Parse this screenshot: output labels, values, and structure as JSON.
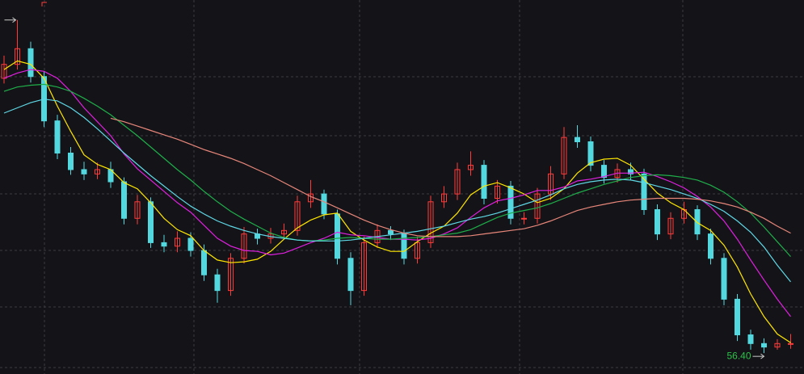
{
  "chart_data": {
    "type": "candlestick",
    "ylim": [
      54,
      97
    ],
    "up_color": "#ff3b3b",
    "down_color": "#54d8e0",
    "open": [
      88.0,
      89.6,
      91.4,
      88.2,
      83.1,
      79.4,
      77.5,
      77.0,
      77.5,
      76.1,
      71.9,
      73.8,
      69.1,
      68.7,
      69.6,
      68.2,
      65.4,
      63.6,
      67.3,
      70.1,
      69.6,
      70.1,
      70.5,
      73.8,
      74.7,
      72.4,
      67.3,
      63.6,
      69.1,
      70.5,
      70.1,
      67.3,
      69.1,
      73.8,
      74.7,
      77.5,
      78.0,
      74.2,
      75.6,
      71.9,
      71.9,
      74.7,
      77.0,
      81.2,
      80.7,
      78.0,
      76.6,
      77.5,
      77.0,
      72.9,
      70.1,
      71.9,
      72.9,
      70.1,
      67.3,
      62.6,
      58.5,
      57.5,
      57.1,
      57.5
    ],
    "high": [
      90.6,
      94.7,
      92.2,
      88.8,
      83.8,
      80.1,
      78.4,
      78.3,
      78.4,
      76.6,
      74.6,
      74.3,
      70.0,
      70.4,
      70.3,
      68.9,
      66.1,
      67.9,
      70.9,
      70.7,
      70.8,
      71.3,
      74.5,
      76.3,
      75.2,
      72.9,
      68.0,
      69.8,
      71.2,
      71.0,
      70.6,
      69.8,
      74.5,
      75.6,
      78.3,
      79.6,
      78.6,
      76.3,
      76.2,
      72.6,
      75.4,
      77.9,
      82.4,
      82.6,
      81.3,
      78.6,
      78.2,
      78.3,
      77.6,
      73.5,
      72.6,
      73.8,
      73.4,
      70.7,
      67.9,
      63.2,
      59.1,
      58.1,
      58.0,
      58.6
    ],
    "low": [
      87.4,
      89.0,
      87.5,
      82.4,
      78.7,
      76.9,
      76.3,
      76.4,
      75.4,
      71.2,
      71.2,
      68.5,
      68.0,
      68.0,
      67.5,
      64.7,
      62.2,
      63.0,
      66.7,
      68.9,
      69.0,
      69.5,
      69.9,
      73.1,
      71.8,
      66.6,
      61.9,
      63.0,
      68.5,
      69.4,
      66.6,
      66.7,
      68.5,
      73.1,
      74.0,
      76.8,
      73.5,
      73.6,
      71.2,
      71.2,
      71.3,
      74.0,
      76.4,
      80.0,
      77.3,
      75.9,
      76.0,
      76.3,
      72.3,
      69.4,
      69.5,
      71.3,
      69.4,
      66.6,
      61.9,
      57.8,
      56.8,
      56.4,
      56.8,
      56.9
    ],
    "close": [
      89.6,
      91.4,
      88.2,
      83.1,
      79.4,
      77.5,
      77.0,
      77.5,
      76.1,
      71.9,
      73.8,
      69.1,
      68.7,
      69.6,
      68.2,
      65.4,
      63.6,
      67.3,
      70.1,
      69.6,
      70.1,
      70.5,
      73.8,
      74.7,
      72.4,
      67.3,
      63.6,
      69.1,
      70.5,
      70.1,
      67.3,
      69.1,
      73.8,
      74.7,
      77.5,
      78.0,
      74.2,
      75.6,
      71.9,
      71.9,
      74.7,
      77.0,
      81.2,
      80.7,
      78.0,
      76.6,
      77.5,
      77.0,
      72.9,
      70.1,
      71.9,
      72.9,
      70.1,
      67.3,
      62.6,
      58.5,
      57.5,
      57.1,
      57.5,
      57.5
    ],
    "series": [
      {
        "color": "#ffe600",
        "values": [
          89.0,
          90.0,
          89.6,
          88.0,
          84.8,
          81.9,
          79.2,
          78.1,
          77.5,
          76.0,
          75.3,
          73.7,
          71.9,
          70.6,
          69.9,
          68.2,
          67.1,
          66.8,
          66.9,
          67.2,
          68.1,
          69.5,
          70.8,
          71.7,
          72.3,
          72.5,
          70.4,
          69.4,
          68.6,
          68.1,
          68.1,
          69.2,
          70.2,
          71.0,
          72.5,
          74.6,
          75.6,
          76.0,
          75.4,
          74.7,
          73.7,
          74.2,
          75.3,
          77.1,
          78.3,
          78.7,
          78.8,
          78.0,
          76.4,
          74.8,
          73.7,
          72.9,
          71.4,
          70.5,
          68.8,
          66.3,
          63.2,
          60.6,
          58.6,
          57.6
        ]
      },
      {
        "color": "#e020e0",
        "values": [
          88.0,
          88.6,
          89.0,
          88.8,
          88.0,
          86.5,
          84.6,
          83.0,
          81.4,
          79.3,
          77.6,
          76.3,
          75.0,
          73.7,
          72.6,
          71.1,
          69.6,
          68.7,
          68.2,
          68.1,
          67.7,
          67.9,
          68.5,
          69.1,
          69.6,
          70.3,
          70.0,
          69.9,
          69.7,
          69.5,
          69.5,
          69.4,
          69.6,
          70.1,
          70.8,
          72.0,
          73.1,
          73.9,
          74.2,
          74.6,
          75.1,
          75.1,
          75.5,
          76.2,
          76.4,
          76.7,
          77.1,
          77.1,
          77.2,
          76.7,
          76.1,
          75.4,
          74.4,
          73.2,
          71.6,
          69.5,
          67.1,
          64.8,
          62.6,
          60.6
        ]
      },
      {
        "color": "#1fae4a",
        "values": [
          86.5,
          87.0,
          87.2,
          87.3,
          87.0,
          86.5,
          85.7,
          84.8,
          83.8,
          82.6,
          81.4,
          80.1,
          78.8,
          77.5,
          76.3,
          75.0,
          73.8,
          72.7,
          71.8,
          71.0,
          70.2,
          69.7,
          69.4,
          69.3,
          69.4,
          69.6,
          69.7,
          69.6,
          69.5,
          69.5,
          69.6,
          69.7,
          69.8,
          70.0,
          70.2,
          70.6,
          71.3,
          72.0,
          72.5,
          72.8,
          73.1,
          73.6,
          74.2,
          74.8,
          75.3,
          75.8,
          76.2,
          76.6,
          76.8,
          76.9,
          76.8,
          76.6,
          76.3,
          75.7,
          74.9,
          73.8,
          72.5,
          70.9,
          69.2,
          67.5
        ]
      },
      {
        "color": "#5fd8e6",
        "values": [
          84.0,
          84.6,
          85.2,
          85.6,
          85.4,
          84.6,
          83.5,
          82.2,
          80.8,
          79.4,
          78.1,
          76.8,
          75.6,
          74.4,
          73.3,
          72.4,
          71.6,
          71.0,
          70.5,
          70.1,
          69.8,
          69.6,
          69.4,
          69.3,
          69.3,
          69.3,
          69.4,
          69.6,
          69.8,
          70.0,
          70.2,
          70.4,
          70.7,
          71.0,
          71.4,
          71.8,
          72.1,
          72.5,
          73.0,
          73.5,
          74.0,
          74.6,
          75.3,
          75.8,
          76.1,
          76.3,
          76.4,
          76.3,
          76.0,
          75.6,
          75.2,
          74.7,
          74.2,
          73.5,
          72.7,
          71.6,
          70.3,
          68.6,
          66.5,
          64.6
        ]
      },
      {
        "color": "#e8867a",
        "values": [
          null,
          null,
          null,
          null,
          null,
          null,
          null,
          null,
          83.4,
          83.0,
          82.5,
          82.0,
          81.5,
          81.0,
          80.4,
          79.8,
          79.3,
          78.8,
          78.2,
          77.5,
          76.8,
          76.0,
          75.2,
          74.4,
          73.8,
          73.1,
          72.4,
          71.7,
          71.1,
          70.6,
          70.2,
          69.9,
          69.8,
          69.8,
          69.8,
          69.9,
          70.1,
          70.3,
          70.5,
          70.7,
          71.1,
          71.6,
          72.2,
          72.8,
          73.2,
          73.5,
          73.8,
          74.0,
          74.1,
          74.2,
          74.2,
          74.2,
          74.1,
          73.9,
          73.6,
          73.2,
          72.6,
          71.9,
          71.0,
          70.2
        ]
      }
    ],
    "low_label": {
      "value": 56.4,
      "label": "56.40",
      "color": "#2ec04a"
    }
  }
}
